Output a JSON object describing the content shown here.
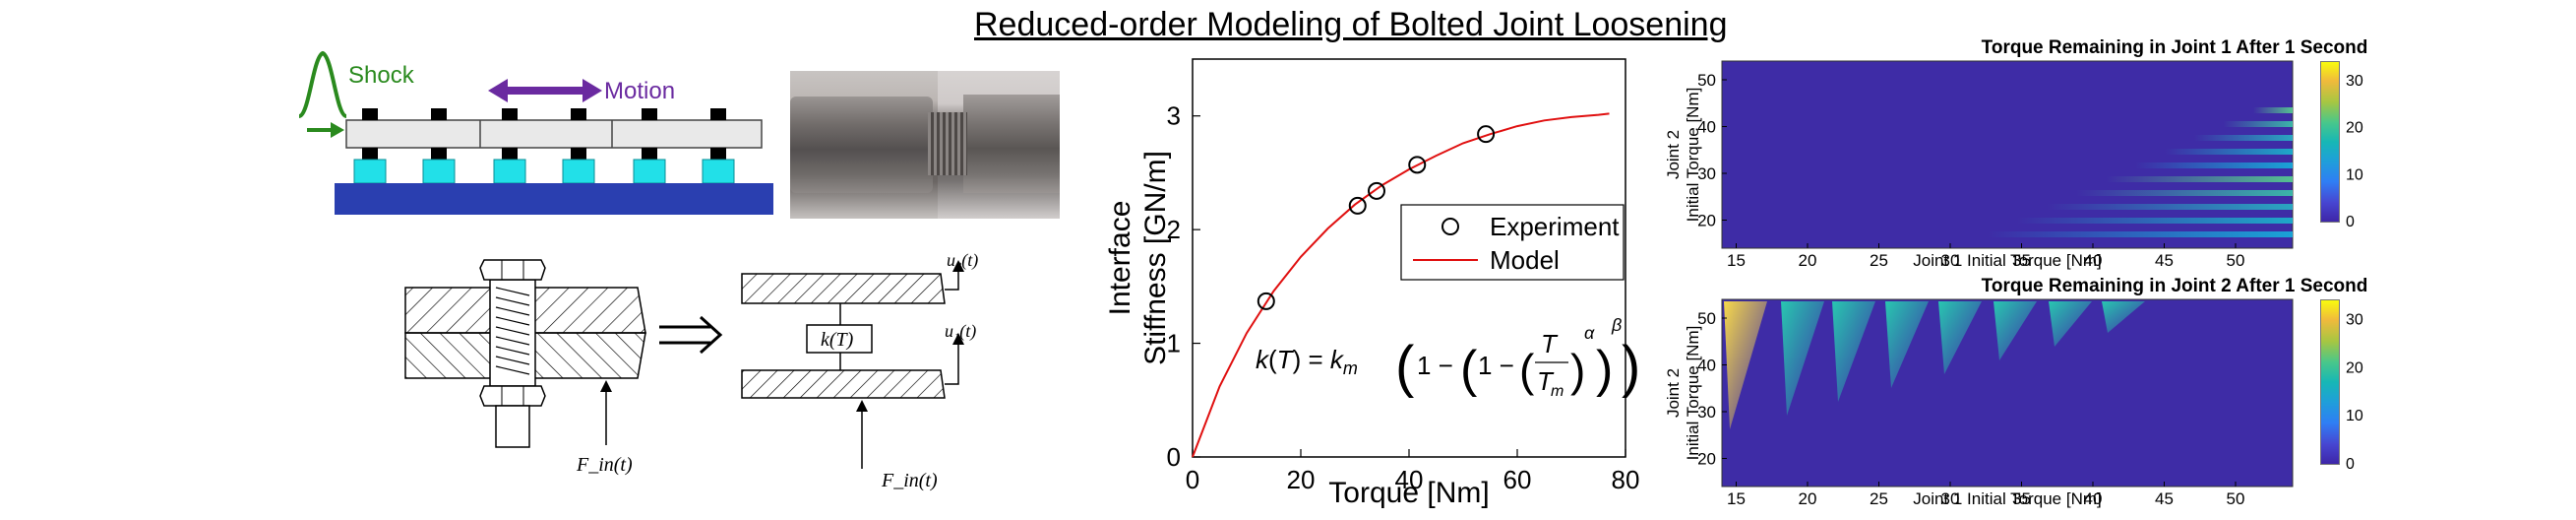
{
  "title": "Reduced-order Modeling of Bolted Joint Loosening",
  "schematic": {
    "shock_label": "Shock",
    "motion_label": "Motion",
    "colors": {
      "shock": "#2a8a1e",
      "motion": "#6a2aa0",
      "base": "#2a3fb0",
      "spacer": "#22e0e8"
    }
  },
  "bolt_diagram": {
    "force_label": "F_in(t)",
    "implies_symbol": "⟹"
  },
  "spring_model": {
    "u2_label": "u₂(t)",
    "u1_label": "u₁(t)",
    "stiffness_label": "k(T)",
    "force_label": "F_in(t)"
  },
  "chart_data": [
    {
      "type": "scatter",
      "title": "",
      "xlabel": "Torque [Nm]",
      "ylabel_line1": "Interface",
      "ylabel_line2": "Stiffness [GN/m]",
      "xlim": [
        0,
        80
      ],
      "ylim": [
        0,
        3.5
      ],
      "xticks": [
        0,
        20,
        40,
        60,
        80
      ],
      "yticks": [
        0,
        1,
        2,
        3
      ],
      "series": [
        {
          "name": "Experiment",
          "marker": "circle",
          "color": "#000000",
          "x": [
            13.6,
            30.5,
            34.0,
            41.5,
            54.2
          ],
          "y": [
            1.37,
            2.21,
            2.34,
            2.57,
            2.84
          ]
        },
        {
          "name": "Model",
          "marker": "line",
          "color": "#e01010",
          "x": [
            0,
            5,
            10,
            15,
            20,
            25,
            30,
            35,
            40,
            45,
            50,
            55,
            60,
            65,
            70,
            75,
            77
          ],
          "y": [
            0,
            0.62,
            1.09,
            1.46,
            1.76,
            2.01,
            2.22,
            2.39,
            2.53,
            2.65,
            2.76,
            2.84,
            2.91,
            2.96,
            2.99,
            3.01,
            3.02
          ]
        }
      ],
      "legend_position": "center-right",
      "equation": "k(T) = k_m(1 − (1 − (T/T_m)^α)^β)"
    },
    {
      "type": "heatmap",
      "title": "Torque Remaining in Joint 1 After 1 Second",
      "xlabel": "Joint 1 Initial Torque [Nm]",
      "ylabel_line1": "Joint 2",
      "ylabel_line2": "Initial Torque [Nm]",
      "xticks": [
        15,
        20,
        25,
        30,
        35,
        40,
        45,
        50
      ],
      "yticks": [
        20,
        30,
        40,
        50
      ],
      "colorbar_ticks": [
        0,
        10,
        20,
        30
      ]
    },
    {
      "type": "heatmap",
      "title": "Torque Remaining in Joint 2 After 1 Second",
      "xlabel": "Joint 1 Initial Torque [Nm]",
      "ylabel_line1": "Joint 2",
      "ylabel_line2": "Initial Torque [Nm]",
      "xticks": [
        15,
        20,
        25,
        30,
        35,
        40,
        45,
        50
      ],
      "yticks": [
        20,
        30,
        40,
        50
      ],
      "colorbar_ticks": [
        0,
        10,
        20,
        30
      ]
    }
  ]
}
